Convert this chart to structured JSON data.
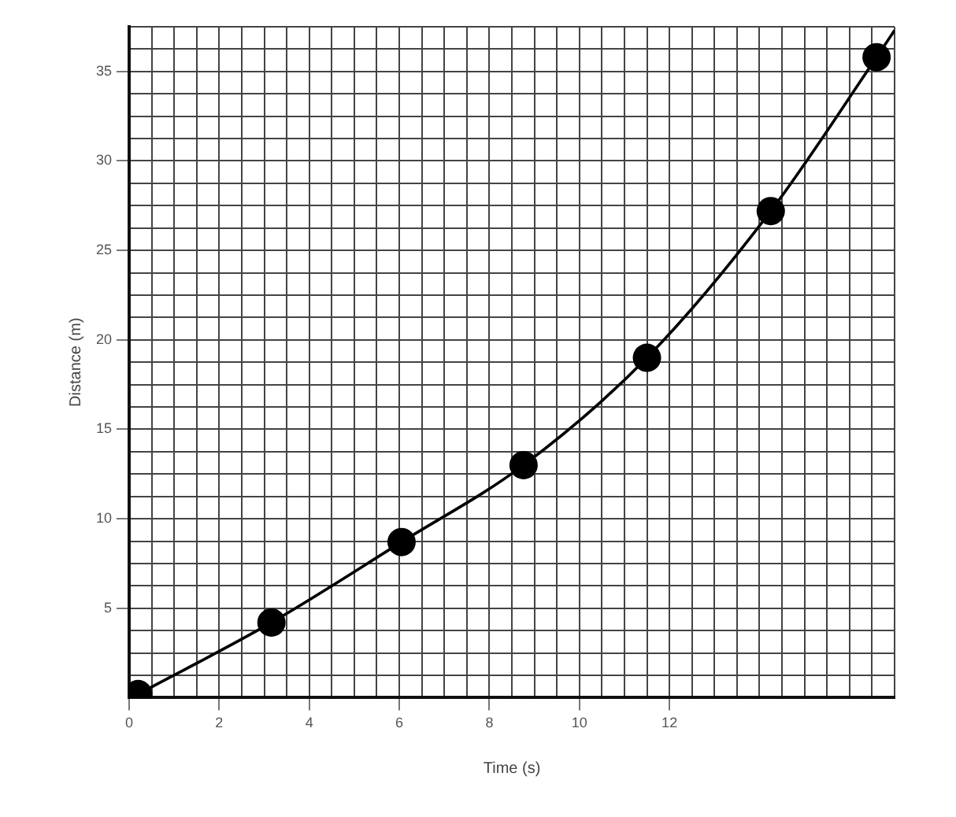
{
  "chart_data": {
    "type": "scatter",
    "xlabel": "Time (s)",
    "ylabel": "Distance (m)",
    "xlim": [
      0,
      17
    ],
    "ylim": [
      0,
      37.5
    ],
    "xticks": [
      0,
      {
        "value": 0.5,
        "label": null
      },
      {
        "value": 1,
        "label": null
      },
      {
        "value": 1.5,
        "label": null
      },
      2,
      {
        "value": 2.5,
        "label": null
      },
      {
        "value": 3,
        "label": null
      },
      {
        "value": 3.5,
        "label": null
      },
      4,
      {
        "value": 4.5,
        "label": null
      },
      {
        "value": 5,
        "label": null
      },
      {
        "value": 5.5,
        "label": null
      },
      6,
      {
        "value": 6.5,
        "label": null
      },
      {
        "value": 7,
        "label": null
      },
      {
        "value": 7.5,
        "label": null
      },
      8,
      {
        "value": 8.5,
        "label": null
      },
      {
        "value": 9,
        "label": null
      },
      {
        "value": 9.5,
        "label": null
      },
      10,
      {
        "value": 10.5,
        "label": null
      },
      {
        "value": 11,
        "label": null
      },
      {
        "value": 11.5,
        "label": null
      },
      12,
      {
        "value": 12.5,
        "label": null
      },
      {
        "value": 13,
        "label": null
      },
      {
        "value": 13.5,
        "label": null
      },
      {
        "value": 14,
        "label": null
      },
      {
        "value": 14.5,
        "label": null
      },
      {
        "value": 15,
        "label": null
      },
      {
        "value": 15.5,
        "label": null
      },
      {
        "value": 16,
        "label": null
      },
      {
        "value": 16.5,
        "label": null
      },
      {
        "value": 17,
        "label": null
      }
    ],
    "yticks": [
      {
        "value": 0,
        "label": null
      },
      {
        "value": 1.25,
        "label": null
      },
      {
        "value": 2.5,
        "label": null
      },
      {
        "value": 3.75,
        "label": null
      },
      5,
      {
        "value": 6.25,
        "label": null
      },
      {
        "value": 7.5,
        "label": null
      },
      {
        "value": 8.75,
        "label": null
      },
      10,
      {
        "value": 11.25,
        "label": null
      },
      {
        "value": 12.5,
        "label": null
      },
      {
        "value": 13.75,
        "label": null
      },
      15,
      {
        "value": 16.25,
        "label": null
      },
      {
        "value": 17.5,
        "label": null
      },
      {
        "value": 18.75,
        "label": null
      },
      20,
      {
        "value": 21.25,
        "label": null
      },
      {
        "value": 22.5,
        "label": null
      },
      {
        "value": 23.75,
        "label": null
      },
      25,
      {
        "value": 26.25,
        "label": null
      },
      {
        "value": 27.5,
        "label": null
      },
      {
        "value": 28.75,
        "label": null
      },
      30,
      {
        "value": 31.25,
        "label": null
      },
      {
        "value": 32.5,
        "label": null
      },
      {
        "value": 33.75,
        "label": null
      },
      35,
      {
        "value": 36.25,
        "label": null
      },
      {
        "value": 37.5,
        "label": null
      }
    ],
    "grid": true,
    "legend": false,
    "series": [
      {
        "type": "line",
        "color": "#000000",
        "marker": "none",
        "line_style": "solid",
        "x": [
          0.2,
          3.16,
          6.05,
          8.76,
          11.5,
          14.25,
          16.6,
          17
        ],
        "values": [
          0.2,
          4.2,
          8.7,
          13.0,
          19.0,
          27.2,
          35.8,
          37.3
        ]
      },
      {
        "type": "scatter",
        "color": "#000000",
        "marker": "circle",
        "x": [
          0.2,
          3.16,
          6.05,
          8.76,
          11.5,
          14.25,
          16.6
        ],
        "values": [
          0.2,
          4.2,
          8.7,
          13.0,
          19.0,
          27.2,
          35.8
        ]
      }
    ]
  }
}
